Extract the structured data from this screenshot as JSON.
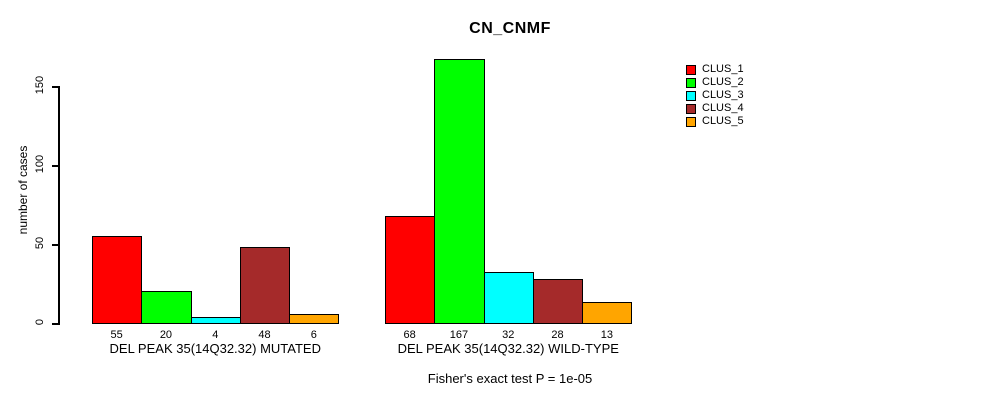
{
  "chart_data": {
    "type": "bar",
    "title": "CN_CNMF",
    "ylabel": "number of cases",
    "xlabel": "",
    "yticks": [
      0,
      50,
      100,
      150
    ],
    "ylim": [
      0,
      175
    ],
    "grid": false,
    "legend_position": "right",
    "categories": [
      "DEL PEAK 35(14Q32.32) MUTATED",
      "DEL PEAK 35(14Q32.32) WILD-TYPE"
    ],
    "series": [
      {
        "name": "CLUS_1",
        "color": "#FF0000",
        "values": [
          55,
          68
        ]
      },
      {
        "name": "CLUS_2",
        "color": "#00FF00",
        "values": [
          20,
          167
        ]
      },
      {
        "name": "CLUS_3",
        "color": "#00FFFF",
        "values": [
          4,
          32
        ]
      },
      {
        "name": "CLUS_4",
        "color": "#A52A2A",
        "values": [
          48,
          28
        ]
      },
      {
        "name": "CLUS_5",
        "color": "#FFA500",
        "values": [
          6,
          13
        ]
      }
    ],
    "groups": [
      {
        "label": "DEL PEAK 35(14Q32.32) MUTATED",
        "values": [
          55,
          20,
          4,
          48,
          6
        ]
      },
      {
        "label": "DEL PEAK 35(14Q32.32) WILD-TYPE",
        "values": [
          68,
          167,
          32,
          28,
          13
        ]
      }
    ],
    "annotation": "Fisher's exact test P = 1e-05"
  }
}
